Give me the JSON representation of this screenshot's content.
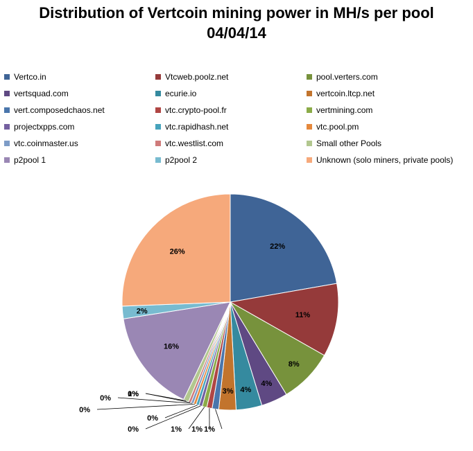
{
  "chart_data": {
    "type": "pie",
    "title": [
      "Distribution of Vertcoin mining power in MH/s per pool",
      "04/04/14"
    ],
    "legend_position": "top",
    "slices": [
      {
        "name": "Vertco.in",
        "value": 22.5,
        "label": "22%",
        "color": "#3F6496"
      },
      {
        "name": "Vtcweb.poolz.net",
        "value": 11.1,
        "label": "11%",
        "color": "#953A3A"
      },
      {
        "name": "pool.verters.com",
        "value": 8.2,
        "label": "8%",
        "color": "#77923C"
      },
      {
        "name": "vertsquad.com",
        "value": 4.0,
        "label": "4%",
        "color": "#5F4983"
      },
      {
        "name": "ecurie.io",
        "value": 3.9,
        "label": "4%",
        "color": "#358A9F"
      },
      {
        "name": "vertcoin.ltcp.net",
        "value": 2.6,
        "label": "3%",
        "color": "#C2742D"
      },
      {
        "name": "vert.composedchaos.net",
        "value": 1.0,
        "label": "1%",
        "color": "#4A76AC"
      },
      {
        "name": "vtc.crypto-pool.fr",
        "value": 0.8,
        "label": "1%",
        "color": "#B04644"
      },
      {
        "name": "vertmining.com",
        "value": 0.7,
        "label": "1%",
        "color": "#8BAB48"
      },
      {
        "name": "projectxpps.com",
        "value": 0.5,
        "label": "0%",
        "color": "#7460A0"
      },
      {
        "name": "vtc.rapidhash.net",
        "value": 0.45,
        "label": "0%",
        "color": "#46A3BC"
      },
      {
        "name": "vtc.pool.pm",
        "value": 0.4,
        "label": "0%",
        "color": "#E5883C"
      },
      {
        "name": "vtc.coinmaster.us",
        "value": 0.4,
        "label": "0%",
        "color": "#7D9CC7"
      },
      {
        "name": "vtc.westlist.com",
        "value": 0.4,
        "label": "0%",
        "color": "#CF7B7A"
      },
      {
        "name": "Small other Pools",
        "value": 0.8,
        "label": "1%",
        "color": "#B2C78F"
      },
      {
        "name": "p2pool 1",
        "value": 15.6,
        "label": "16%",
        "color": "#9A87B4"
      },
      {
        "name": "p2pool 2",
        "value": 1.9,
        "label": "2%",
        "color": "#78BBD0"
      },
      {
        "name": "Unknown (solo miners, private pools)",
        "value": 25.9,
        "label": "26%",
        "color": "#F6A97B"
      }
    ]
  }
}
